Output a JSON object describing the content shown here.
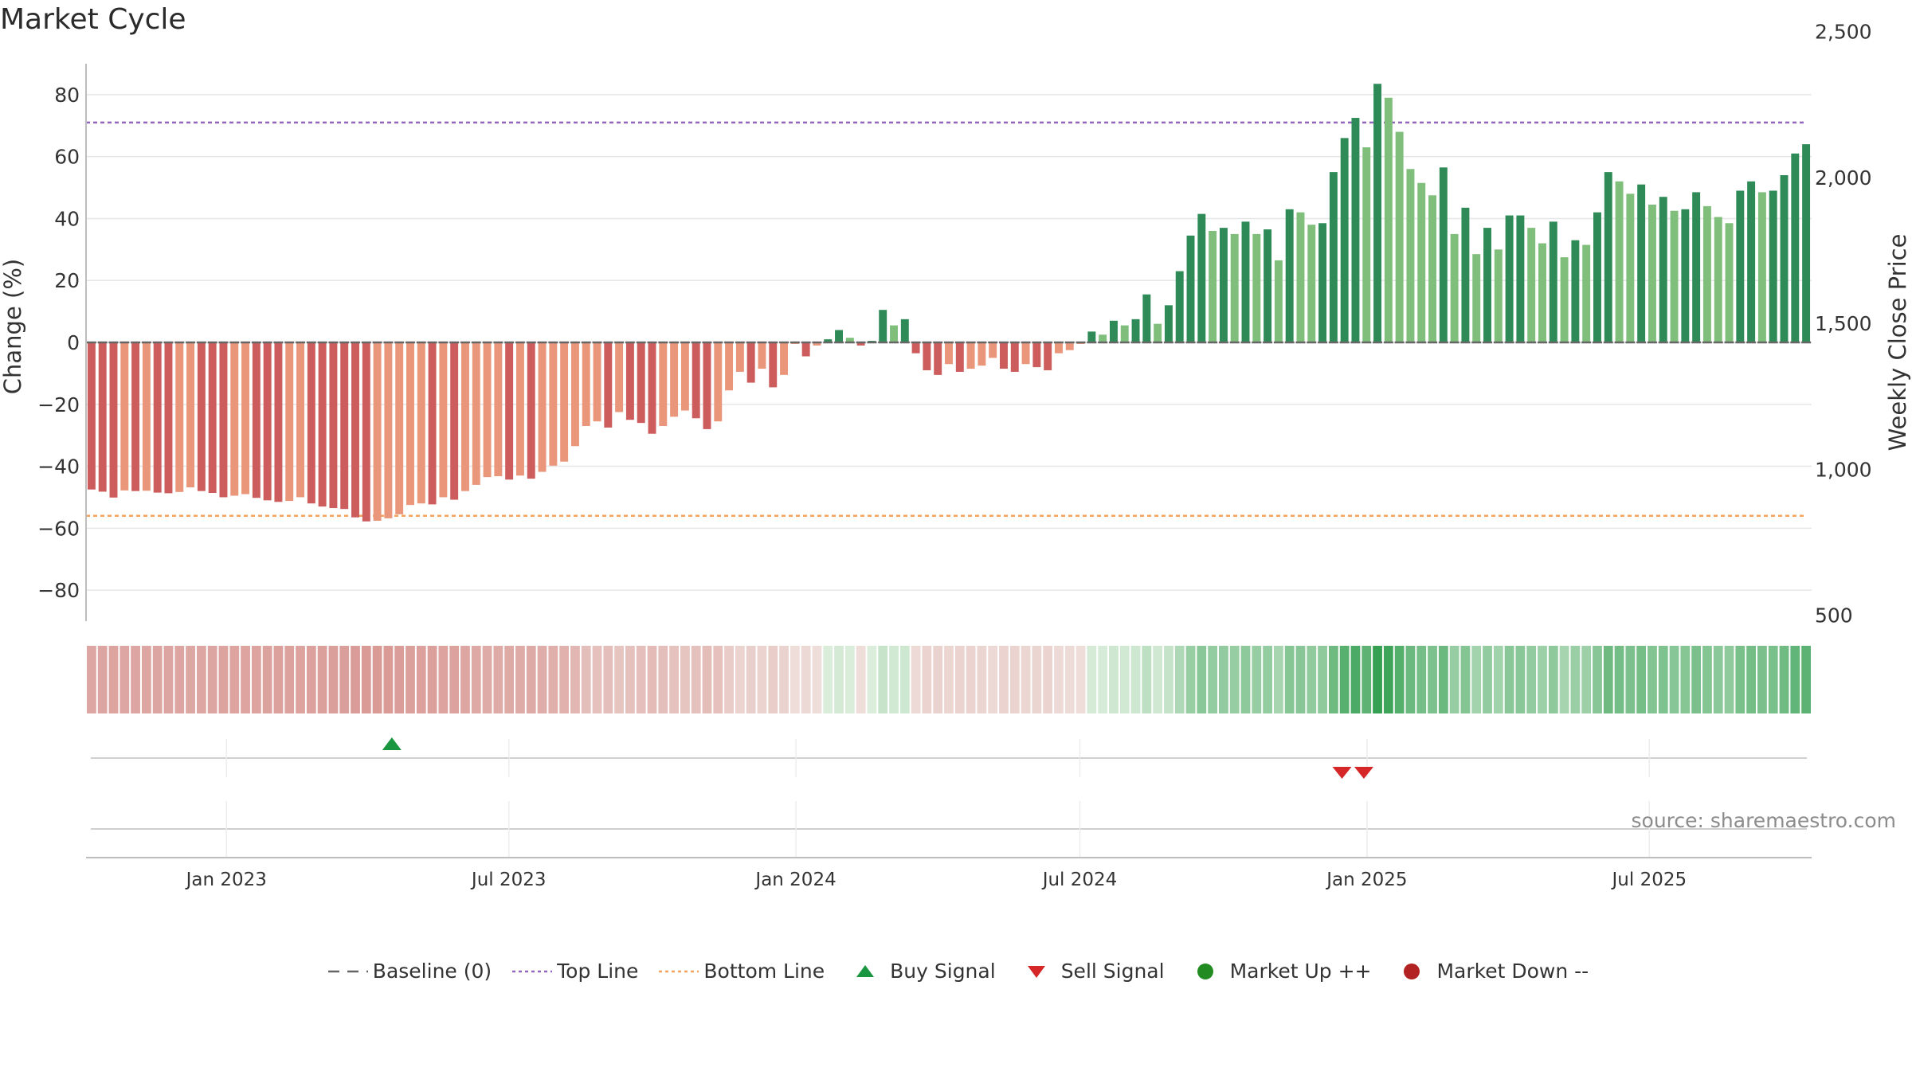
{
  "chart_data": {
    "type": "bar",
    "title": "Market Cycle",
    "ylabel": "Change (%)",
    "y2label": "Weekly Close Price",
    "ylim": [
      -90,
      90
    ],
    "y2lim": [
      480,
      2390
    ],
    "yticks": [
      80,
      60,
      40,
      20,
      0,
      -20,
      -40,
      -60,
      -80
    ],
    "y2ticks": [
      2500,
      2000,
      1500,
      1000,
      500
    ],
    "y2tick_labels": [
      "2,500",
      "2,000",
      "1,500",
      "1,000",
      "500"
    ],
    "x_start": "2022-10-03",
    "x_end": "2025-10-13",
    "xticks": [
      {
        "date": "2023-01-01",
        "label": "Jan 2023"
      },
      {
        "date": "2023-07-01",
        "label": "Jul 2023"
      },
      {
        "date": "2024-01-01",
        "label": "Jan 2024"
      },
      {
        "date": "2024-07-01",
        "label": "Jul 2024"
      },
      {
        "date": "2025-01-01",
        "label": "Jan 2025"
      },
      {
        "date": "2025-07-01",
        "label": "Jul 2025"
      }
    ],
    "top_line": 71,
    "bottom_line": -56,
    "baseline": 0,
    "series": [
      {
        "values": [
          -47.5,
          -48.2,
          -50.1,
          -47.8,
          -48.0,
          -47.9,
          -48.5,
          -48.7,
          -48.3,
          -46.8,
          -48.0,
          -48.6,
          -50.0,
          -49.5,
          -49.0,
          -50.2,
          -51.0,
          -51.5,
          -51.2,
          -50.0,
          -52.0,
          -53.0,
          -53.5,
          -53.8,
          -56.5,
          -57.8,
          -57.6,
          -56.8,
          -55.5,
          -52.5,
          -52.0,
          -52.3,
          -50.0,
          -50.8,
          -48.0,
          -46.0,
          -43.5,
          -43.2,
          -44.3,
          -43.0,
          -44.0,
          -41.8,
          -39.8,
          -38.5,
          -33.5,
          -27.0,
          -25.5,
          -27.5,
          -22.5,
          -25.0,
          -26.0,
          -29.5,
          -27.0,
          -24.0,
          -22.0,
          -24.5,
          -28.0,
          -25.5,
          -15.5,
          -9.5,
          -13.0,
          -8.5,
          -14.5,
          -10.5,
          -0.5,
          -4.5,
          -1.0,
          1.0,
          4.0,
          1.5,
          -1.0,
          0.5,
          10.5,
          5.5,
          7.5,
          -3.5,
          -9.0,
          -10.5,
          -7.0,
          -9.5,
          -8.5,
          -7.5,
          -5.0,
          -8.5,
          -9.5,
          -7.0,
          -8.0,
          -9.0,
          -3.5,
          -2.5,
          -0.5,
          3.5,
          2.5,
          7.0,
          5.5,
          7.5,
          15.5,
          6.0,
          12.0,
          23.0,
          34.5,
          41.5,
          36.0,
          37.0,
          35.0,
          39.0,
          35.0,
          36.5,
          26.5,
          43.0,
          42.0,
          38.0,
          38.5,
          55.0,
          66.0,
          72.5,
          63.0,
          83.5,
          79.0,
          68.0,
          56.0,
          51.5,
          47.5,
          56.5,
          35.0,
          43.5,
          28.5,
          37.0,
          30.0,
          41.0,
          41.0,
          37.0,
          32.0,
          39.0,
          27.5,
          33.0,
          31.5,
          42.0,
          55.0,
          52.0,
          48.0,
          51.0,
          44.5,
          47.0,
          42.5,
          43.0,
          48.5,
          44.0,
          40.5,
          38.5,
          49.0,
          52.0,
          48.5,
          49.0,
          54.0,
          61.0,
          64.0
        ]
      }
    ],
    "signals": {
      "buy": [
        "2023-04-17"
      ],
      "sell": [
        "2024-12-16",
        "2024-12-30"
      ]
    },
    "legend": [
      {
        "label": "Baseline (0)",
        "symbol": "dash",
        "color": "#666666"
      },
      {
        "label": "Top Line",
        "symbol": "dot-line",
        "color": "#9467bd"
      },
      {
        "label": "Bottom Line",
        "symbol": "dot-line",
        "color": "#f5a25d"
      },
      {
        "label": "Buy Signal",
        "symbol": "triangle-up",
        "color": "#1a9641"
      },
      {
        "label": "Sell Signal",
        "symbol": "triangle-down",
        "color": "#d62728"
      },
      {
        "label": "Market Up ++",
        "symbol": "circle",
        "color": "#228b22"
      },
      {
        "label": "Market Down --",
        "symbol": "circle",
        "color": "#b22222"
      }
    ],
    "legend_position": "bottom",
    "colors": {
      "green_dark": "#2e8b57",
      "green_light": "#7fbf7b",
      "red_dark": "#cd5c5c",
      "red_light": "#e9967a",
      "top_line": "#9467bd",
      "bottom_line": "#f5a25d"
    },
    "source": "source: sharemaestro.com"
  }
}
